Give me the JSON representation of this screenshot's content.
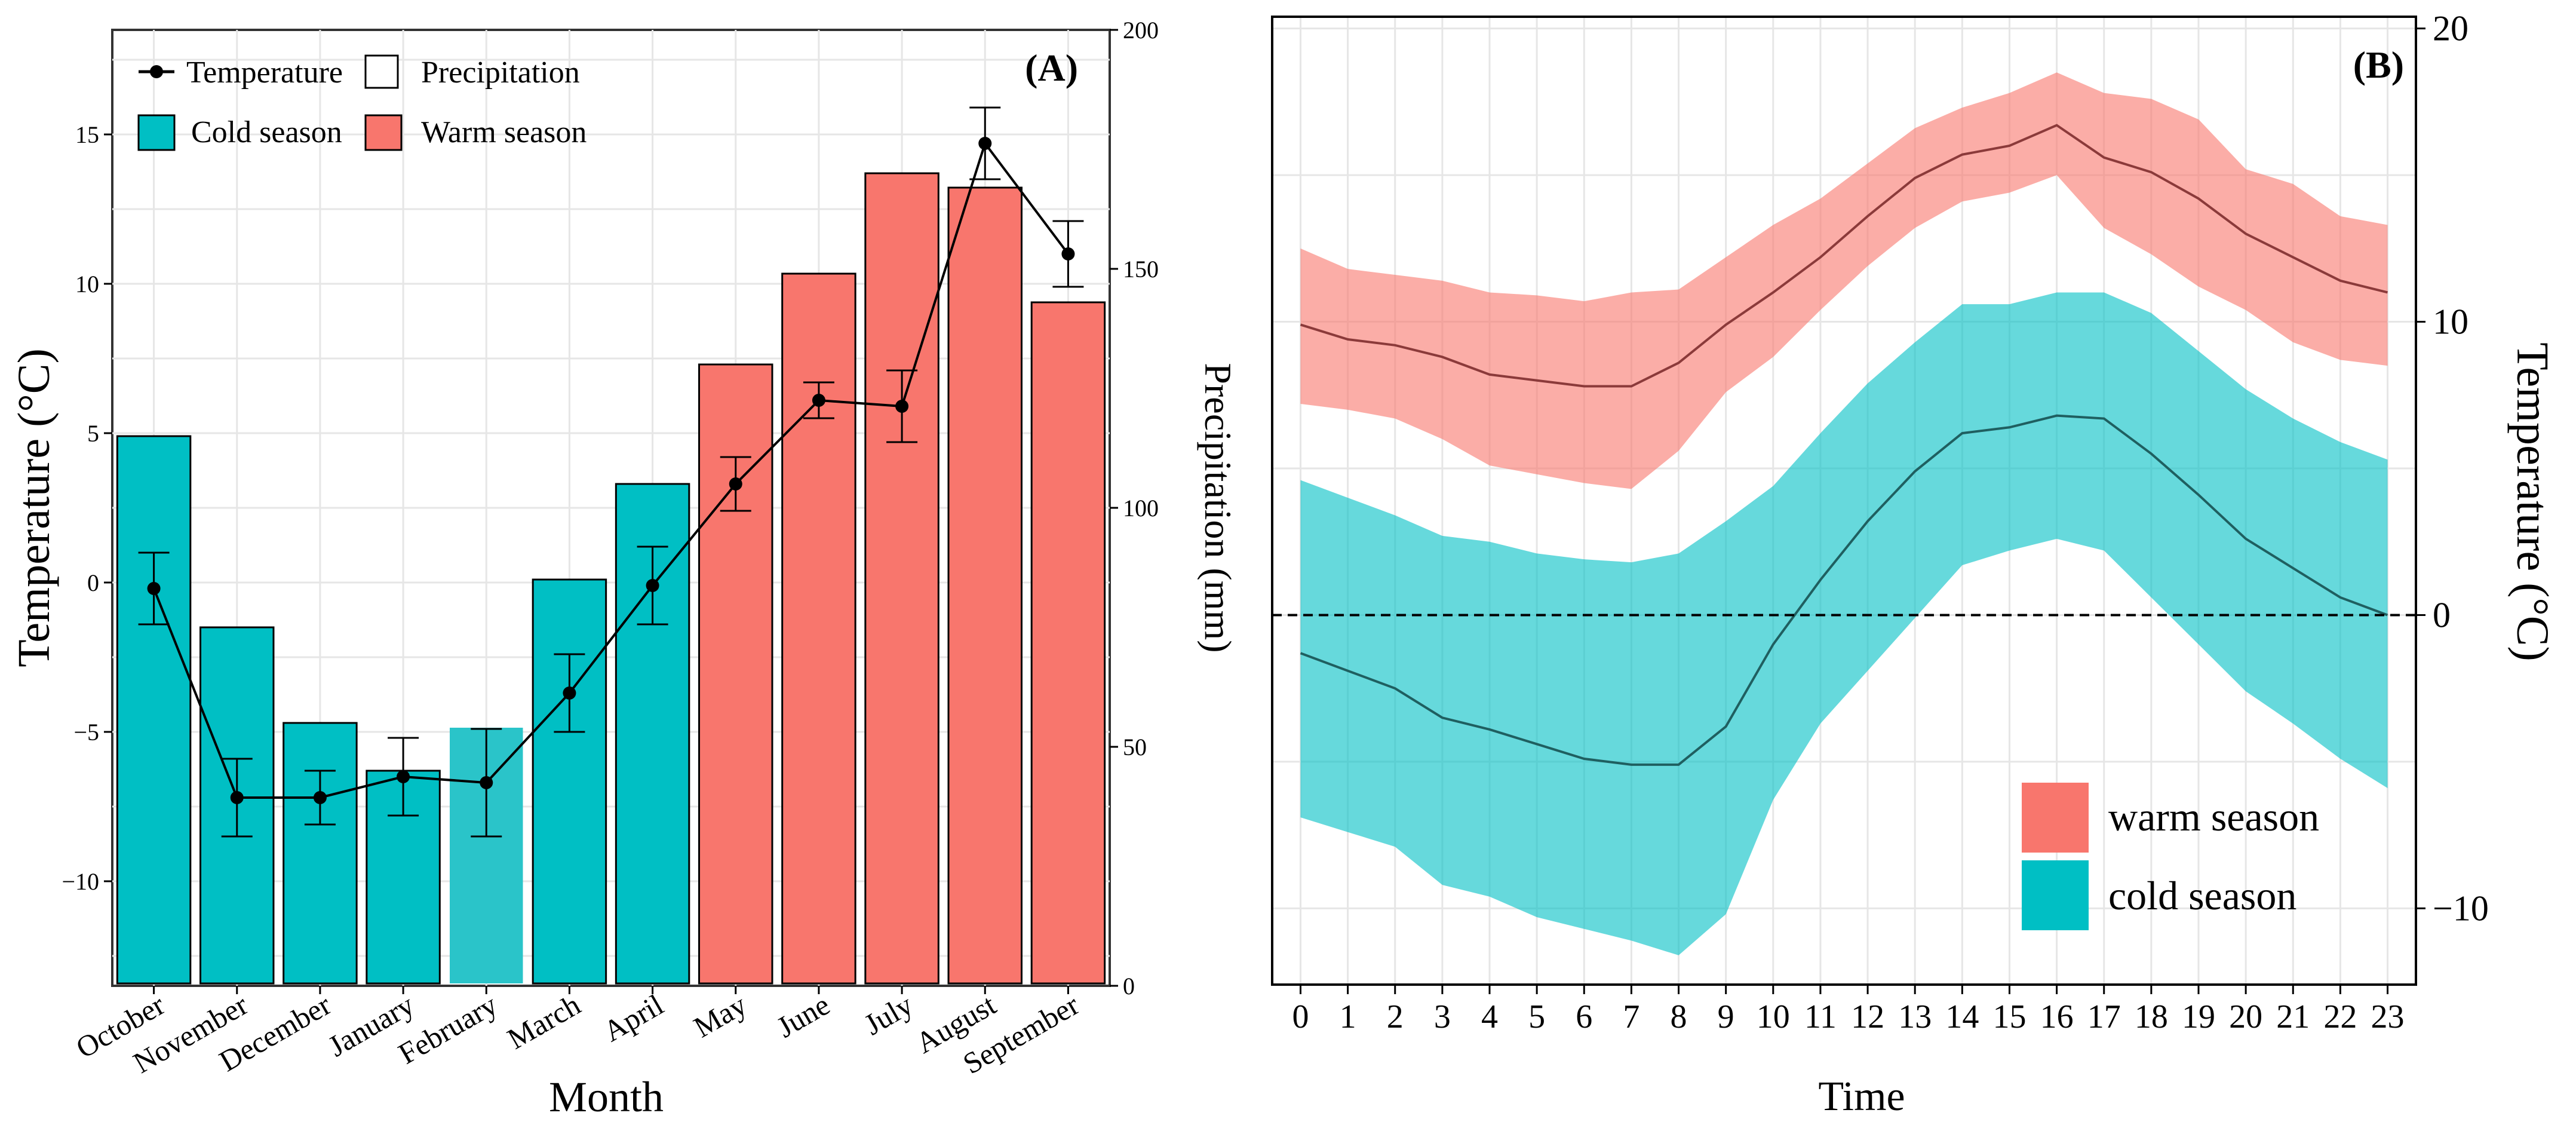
{
  "chart_data": [
    {
      "panel": "(A)",
      "type": "bar+line",
      "xlabel": "Month",
      "ylabel_left": "Temperature (°C)",
      "ylabel_right": "Precipitation (mm)",
      "categories": [
        "October",
        "November",
        "December",
        "January",
        "February",
        "March",
        "April",
        "May",
        "June",
        "July",
        "August",
        "September"
      ],
      "season": [
        "cold",
        "cold",
        "cold",
        "cold",
        "cold",
        "cold",
        "cold",
        "warm",
        "warm",
        "warm",
        "warm",
        "warm"
      ],
      "precipitation": [
        115,
        75,
        55,
        45,
        54,
        85,
        105,
        130,
        149,
        170,
        167,
        143
      ],
      "temperature": [
        -0.2,
        -7.2,
        -7.2,
        -6.5,
        -6.7,
        -3.7,
        -0.1,
        3.3,
        6.1,
        5.9,
        14.7,
        11.0
      ],
      "temperature_err": [
        1.2,
        1.3,
        0.9,
        1.3,
        1.8,
        1.3,
        1.3,
        0.9,
        0.6,
        1.2,
        1.2,
        1.1
      ],
      "ylim_left": [
        -13.5,
        18.5
      ],
      "yticks_left": [
        -10,
        -5,
        0,
        5,
        10,
        15
      ],
      "ylim_right": [
        0,
        200
      ],
      "yticks_right": [
        0,
        50,
        100,
        150,
        200
      ],
      "legend": {
        "temperature": "Temperature",
        "precipitation": "Precipitation",
        "cold": "Cold season",
        "warm": "Warm season"
      },
      "colors": {
        "cold": "#00BFC4",
        "warm": "#F8766D",
        "february": "#2AC4C9"
      }
    },
    {
      "panel": "(B)",
      "type": "area+line",
      "xlabel": "Time",
      "ylabel": "Temperature (°C)",
      "x": [
        0,
        1,
        2,
        3,
        4,
        5,
        6,
        7,
        8,
        9,
        10,
        11,
        12,
        13,
        14,
        15,
        16,
        17,
        18,
        19,
        20,
        21,
        22,
        23
      ],
      "xlim": [
        -0.6,
        23.6
      ],
      "ylim": [
        -12.6,
        20.4
      ],
      "yticks": [
        -10,
        0,
        10,
        20
      ],
      "reference_line": 0,
      "series": [
        {
          "name": "warm season",
          "color": "#F8766D",
          "mean": [
            9.9,
            9.4,
            9.2,
            8.8,
            8.2,
            8.0,
            7.8,
            7.8,
            8.6,
            9.9,
            11.0,
            12.2,
            13.6,
            14.9,
            15.7,
            16.0,
            16.7,
            15.6,
            15.1,
            14.2,
            13.0,
            12.2,
            11.4,
            11.0
          ],
          "upper": [
            12.5,
            11.8,
            11.6,
            11.4,
            11.0,
            10.9,
            10.7,
            11.0,
            11.1,
            12.2,
            13.3,
            14.2,
            15.4,
            16.6,
            17.3,
            17.8,
            18.5,
            17.8,
            17.6,
            16.9,
            15.2,
            14.7,
            13.6,
            13.3
          ],
          "lower": [
            7.2,
            7.0,
            6.7,
            6.0,
            5.1,
            4.8,
            4.5,
            4.3,
            5.6,
            7.6,
            8.8,
            10.4,
            11.9,
            13.2,
            14.1,
            14.4,
            15.0,
            13.2,
            12.3,
            11.2,
            10.4,
            9.3,
            8.7,
            8.5
          ]
        },
        {
          "name": "cold season",
          "color": "#00BFC4",
          "mean": [
            -1.3,
            -1.9,
            -2.5,
            -3.5,
            -3.9,
            -4.4,
            -4.9,
            -5.1,
            -5.1,
            -3.8,
            -1.0,
            1.2,
            3.2,
            4.9,
            6.2,
            6.4,
            6.8,
            6.7,
            5.5,
            4.1,
            2.6,
            1.6,
            0.6,
            0.0
          ],
          "upper": [
            4.6,
            4.0,
            3.4,
            2.7,
            2.5,
            2.1,
            1.9,
            1.8,
            2.1,
            3.2,
            4.4,
            6.2,
            7.9,
            9.3,
            10.6,
            10.6,
            11.0,
            11.0,
            10.3,
            9.0,
            7.7,
            6.7,
            5.9,
            5.3
          ],
          "lower": [
            -6.9,
            -7.4,
            -7.9,
            -9.2,
            -9.6,
            -10.3,
            -10.7,
            -11.1,
            -11.6,
            -10.2,
            -6.3,
            -3.7,
            -1.9,
            -0.1,
            1.7,
            2.2,
            2.6,
            2.2,
            0.6,
            -1.0,
            -2.6,
            -3.7,
            -4.9,
            -5.9
          ]
        }
      ],
      "colors": {
        "warm_line": "#8B3A3A",
        "cold_line": "#1F5F60"
      }
    }
  ]
}
